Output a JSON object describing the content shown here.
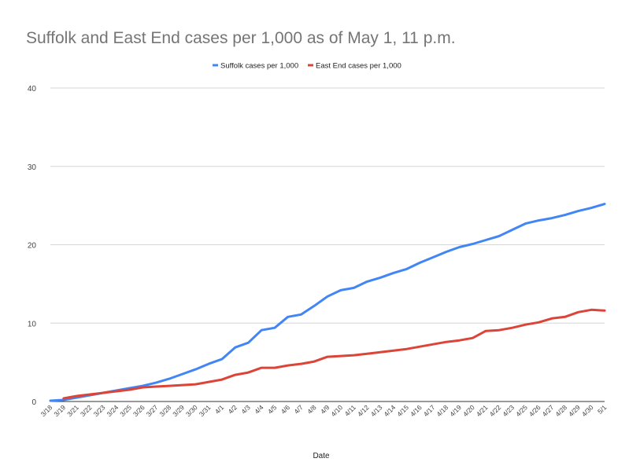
{
  "chart_data": {
    "type": "line",
    "title": "Suffolk and East End cases per 1,000 as of May 1, 11 p.m.",
    "xlabel": "Date",
    "ylabel": "",
    "ylim": [
      0,
      40
    ],
    "yticks": [
      0,
      10,
      20,
      30,
      40
    ],
    "grid": true,
    "legend_position": "top",
    "categories": [
      "3/18",
      "3/19",
      "3/21",
      "3/22",
      "3/23",
      "3/24",
      "3/25",
      "3/26",
      "3/27",
      "3/28",
      "3/29",
      "3/30",
      "3/31",
      "4/1",
      "4/2",
      "4/3",
      "4/4",
      "4/5",
      "4/6",
      "4/7",
      "4/8",
      "4/9",
      "4/10",
      "4/11",
      "4/12",
      "4/13",
      "4/14",
      "4/15",
      "4/16",
      "4/17",
      "4/18",
      "4/19",
      "4/20",
      "4/21",
      "4/22",
      "4/23",
      "4/25",
      "4/26",
      "4/27",
      "4/28",
      "4/29",
      "4/30",
      "5/1"
    ],
    "series": [
      {
        "name": "Suffolk cases per 1,000",
        "color": "#4285f4",
        "values": [
          0.1,
          0.2,
          0.5,
          0.8,
          1.1,
          1.4,
          1.7,
          2.0,
          2.4,
          2.9,
          3.5,
          4.1,
          4.8,
          5.4,
          6.9,
          7.5,
          9.1,
          9.4,
          10.8,
          11.1,
          12.2,
          13.4,
          14.2,
          14.5,
          15.3,
          15.8,
          16.4,
          16.9,
          17.7,
          18.4,
          19.1,
          19.7,
          20.1,
          20.6,
          21.1,
          21.9,
          22.7,
          23.1,
          23.4,
          23.8,
          24.3,
          24.7,
          25.2
        ]
      },
      {
        "name": "East End cases per 1,000",
        "color": "#db4437",
        "values": [
          null,
          0.4,
          0.7,
          0.9,
          1.1,
          1.3,
          1.5,
          1.8,
          1.9,
          2.0,
          2.1,
          2.2,
          2.5,
          2.8,
          3.4,
          3.7,
          4.3,
          4.3,
          4.6,
          4.8,
          5.1,
          5.7,
          5.8,
          5.9,
          6.1,
          6.3,
          6.5,
          6.7,
          7.0,
          7.3,
          7.6,
          7.8,
          8.1,
          9.0,
          9.1,
          9.4,
          9.8,
          10.1,
          10.6,
          10.8,
          11.4,
          11.7,
          11.6
        ]
      }
    ]
  }
}
